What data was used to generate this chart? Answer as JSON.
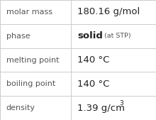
{
  "rows": [
    {
      "label": "molar mass",
      "type": "normal",
      "value": "180.16 g/mol"
    },
    {
      "label": "phase",
      "type": "phase",
      "value_bold": "solid",
      "value_small": "(at STP)"
    },
    {
      "label": "melting point",
      "type": "normal",
      "value": "140 °C"
    },
    {
      "label": "boiling point",
      "type": "normal",
      "value": "140 °C"
    },
    {
      "label": "density",
      "type": "super",
      "value_main": "1.39 g/cm",
      "value_sup": "3"
    }
  ],
  "bg_color": "#f7f7f7",
  "cell_bg": "#ffffff",
  "border_color": "#cccccc",
  "label_color": "#555555",
  "value_color": "#222222",
  "label_fontsize": 8.0,
  "value_fontsize": 9.5,
  "bold_fontsize": 9.5,
  "small_fontsize": 6.8,
  "super_fontsize": 6.5,
  "col_split": 0.455,
  "figw": 2.2,
  "figh": 1.69,
  "dpi": 100
}
